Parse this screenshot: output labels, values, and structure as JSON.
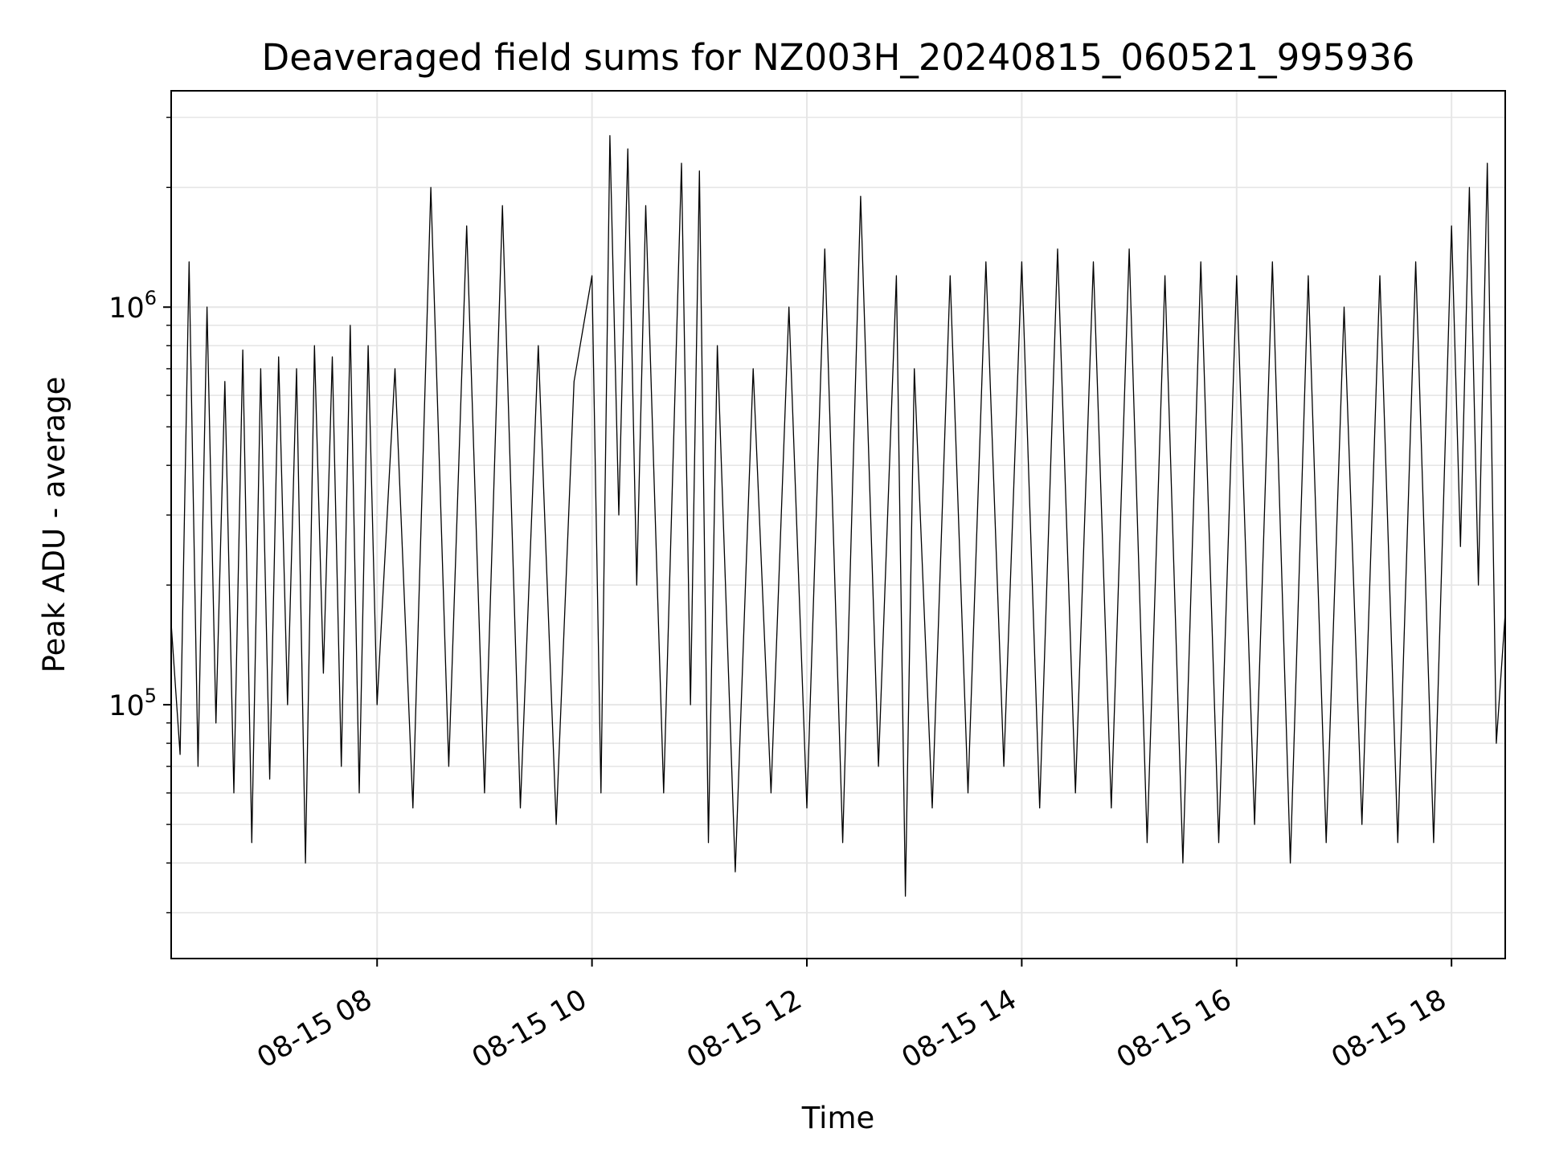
{
  "chart_data": {
    "type": "line",
    "title": "Deaveraged field sums for NZ003H_20240815_060521_995936",
    "xlabel": "Time",
    "ylabel": "Peak ADU - average",
    "xscale": "time",
    "yscale": "log",
    "xlim": [
      "2024-08-15 06:05",
      "2024-08-15 18:30"
    ],
    "ylim": [
      23000,
      3500000
    ],
    "grid": true,
    "line_color": "#000000",
    "grid_color": "#e6e6e6",
    "xticks": [
      {
        "time": "2024-08-15 08:00",
        "label": "08-15 08"
      },
      {
        "time": "2024-08-15 10:00",
        "label": "08-15 10"
      },
      {
        "time": "2024-08-15 12:00",
        "label": "08-15 12"
      },
      {
        "time": "2024-08-15 14:00",
        "label": "08-15 14"
      },
      {
        "time": "2024-08-15 16:00",
        "label": "08-15 16"
      },
      {
        "time": "2024-08-15 18:00",
        "label": "08-15 18"
      }
    ],
    "yticks": [
      {
        "value": 100000,
        "base": "10",
        "exponent": "5"
      },
      {
        "value": 1000000,
        "base": "10",
        "exponent": "6"
      }
    ],
    "series": [
      {
        "x": [
          "2024-08-15 06:05",
          "2024-08-15 06:10",
          "2024-08-15 06:15",
          "2024-08-15 06:20",
          "2024-08-15 06:25",
          "2024-08-15 06:30",
          "2024-08-15 06:35",
          "2024-08-15 06:40",
          "2024-08-15 06:45",
          "2024-08-15 06:50",
          "2024-08-15 06:55",
          "2024-08-15 07:00",
          "2024-08-15 07:05",
          "2024-08-15 07:10",
          "2024-08-15 07:15",
          "2024-08-15 07:20",
          "2024-08-15 07:25",
          "2024-08-15 07:30",
          "2024-08-15 07:35",
          "2024-08-15 07:40",
          "2024-08-15 07:45",
          "2024-08-15 07:50",
          "2024-08-15 07:55",
          "2024-08-15 08:00",
          "2024-08-15 08:10",
          "2024-08-15 08:20",
          "2024-08-15 08:30",
          "2024-08-15 08:40",
          "2024-08-15 08:50",
          "2024-08-15 09:00",
          "2024-08-15 09:10",
          "2024-08-15 09:20",
          "2024-08-15 09:30",
          "2024-08-15 09:40",
          "2024-08-15 09:50",
          "2024-08-15 10:00",
          "2024-08-15 10:05",
          "2024-08-15 10:10",
          "2024-08-15 10:15",
          "2024-08-15 10:20",
          "2024-08-15 10:25",
          "2024-08-15 10:30",
          "2024-08-15 10:40",
          "2024-08-15 10:50",
          "2024-08-15 10:55",
          "2024-08-15 11:00",
          "2024-08-15 11:05",
          "2024-08-15 11:10",
          "2024-08-15 11:20",
          "2024-08-15 11:30",
          "2024-08-15 11:40",
          "2024-08-15 11:50",
          "2024-08-15 12:00",
          "2024-08-15 12:10",
          "2024-08-15 12:20",
          "2024-08-15 12:30",
          "2024-08-15 12:40",
          "2024-08-15 12:50",
          "2024-08-15 12:55",
          "2024-08-15 13:00",
          "2024-08-15 13:10",
          "2024-08-15 13:20",
          "2024-08-15 13:30",
          "2024-08-15 13:40",
          "2024-08-15 13:50",
          "2024-08-15 14:00",
          "2024-08-15 14:10",
          "2024-08-15 14:20",
          "2024-08-15 14:30",
          "2024-08-15 14:40",
          "2024-08-15 14:50",
          "2024-08-15 15:00",
          "2024-08-15 15:10",
          "2024-08-15 15:20",
          "2024-08-15 15:30",
          "2024-08-15 15:40",
          "2024-08-15 15:50",
          "2024-08-15 16:00",
          "2024-08-15 16:10",
          "2024-08-15 16:20",
          "2024-08-15 16:30",
          "2024-08-15 16:40",
          "2024-08-15 16:50",
          "2024-08-15 17:00",
          "2024-08-15 17:10",
          "2024-08-15 17:20",
          "2024-08-15 17:30",
          "2024-08-15 17:40",
          "2024-08-15 17:50",
          "2024-08-15 18:00",
          "2024-08-15 18:05",
          "2024-08-15 18:10",
          "2024-08-15 18:15",
          "2024-08-15 18:20",
          "2024-08-15 18:25",
          "2024-08-15 18:30"
        ],
        "y": [
          160000,
          75000,
          1300000,
          70000,
          1000000,
          90000,
          650000,
          60000,
          780000,
          45000,
          700000,
          65000,
          750000,
          100000,
          700000,
          40000,
          800000,
          120000,
          750000,
          70000,
          900000,
          60000,
          800000,
          100000,
          700000,
          55000,
          2000000,
          70000,
          1600000,
          60000,
          1800000,
          55000,
          800000,
          50000,
          650000,
          1200000,
          60000,
          2700000,
          300000,
          2500000,
          200000,
          1800000,
          60000,
          2300000,
          100000,
          2200000,
          45000,
          800000,
          38000,
          700000,
          60000,
          1000000,
          55000,
          1400000,
          45000,
          1900000,
          70000,
          1200000,
          33000,
          700000,
          55000,
          1200000,
          60000,
          1300000,
          70000,
          1300000,
          55000,
          1400000,
          60000,
          1300000,
          55000,
          1400000,
          45000,
          1200000,
          40000,
          1300000,
          45000,
          1200000,
          50000,
          1300000,
          40000,
          1200000,
          45000,
          1000000,
          50000,
          1200000,
          45000,
          1300000,
          45000,
          1600000,
          250000,
          2000000,
          200000,
          2300000,
          80000,
          170000
        ]
      }
    ]
  }
}
